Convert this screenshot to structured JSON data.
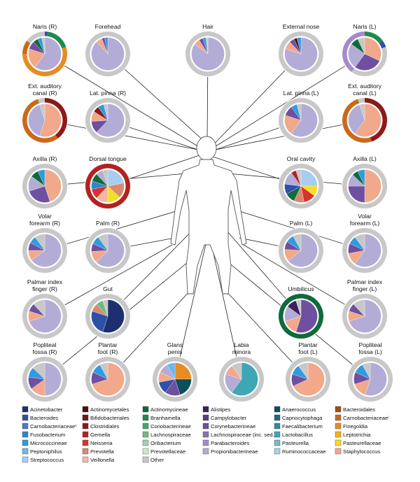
{
  "palette": {
    "Acinetobacter": "#1d2f6e",
    "Bacteroides": "#2f4fa8",
    "Carnobacteriaceae II": "#4c78c8",
    "Fusobacterium": "#2a89c9",
    "Micrococcineae": "#2f9be0",
    "Peptoniphilus": "#6fb6ea",
    "Streptococcus": "#a7cdf0",
    "Actinomycetales": "#4d1010",
    "Bifidobacteriales": "#701515",
    "Clostridiales": "#8c1a1a",
    "Gemella": "#b22222",
    "Neisseria": "#d93030",
    "Prevotella": "#d98a6e",
    "Veillonella": "#f0b9a4",
    "Actinomycineae": "#0f6a3c",
    "Branhamella": "#1f8a4f",
    "Coriobacterineae": "#3fa86a",
    "Lachnospiraceae": "#6dbb84",
    "Oribacterium": "#9ed2a8",
    "Prevotellaceae": "#cfe7cf",
    "Other": "#c8c8c8",
    "Alistipes": "#3e2060",
    "Campylobacter": "#5b3a86",
    "Corynebacterineae": "#6f4fa0",
    "Lachnospiraceae (inc. sed.)": "#8a6fb8",
    "Parabacteroides": "#a38ccb",
    "Propionibacterineae": "#b3acd6",
    "Anaerococcus": "#0b4e5c",
    "Capnocytophaga": "#176e7e",
    "Faecalibacterium": "#2a8c9c",
    "Lactobacillus": "#3fa6b6",
    "Pasteurella": "#6cc0ca",
    "Ruminococcaceae": "#a0d7dd",
    "Bacteroidales": "#a84a14",
    "Carnobacteriaceae I": "#c9691c",
    "Finegoldia": "#e88b23",
    "Leptotrichia": "#f2b41d",
    "Pasteurellaceae": "#f7dd25",
    "Staphylococcus": "#f2a88a",
    "ring_gray": "#c6c6c6"
  },
  "legend": [
    [
      "Acinetobacter",
      "Bacteroides",
      "Carnobacteriaceae II",
      "Fusobacterium",
      "Micrococcineae",
      "Peptoniphilus",
      "Streptococcus"
    ],
    [
      "Actinomycetales",
      "Bifidobacteriales",
      "Clostridiales",
      "Gemella",
      "Neisseria",
      "Prevotella",
      "Veillonella"
    ],
    [
      "Actinomycineae",
      "Branhamella",
      "Coriobacterineae",
      "Lachnospiraceae",
      "Oribacterium",
      "Prevotellaceae",
      "Other"
    ],
    [
      "Alistipes",
      "Campylobacter",
      "Corynebacterineae",
      "Lachnospiraceae (inc. sed.)",
      "Parabacteroides",
      "Propionibacterineae"
    ],
    [
      "Anaerococcus",
      "Capnocytophaga",
      "Faecalibacterium",
      "Lactobacillus",
      "Pasteurella",
      "Ruminococcaceae"
    ],
    [
      "Bacteroidales",
      "Carnobacteriaceae I",
      "Finegoldia",
      "Leptotrichia",
      "Pasteurellaceae",
      "Staphylococcus"
    ]
  ],
  "legend_display": {
    "Carnobacteriaceae II": "Carnobacteriaceaeⁱⁱ",
    "Carnobacteriaceae I": "Carnobacteriaceaeⁱ"
  },
  "sites": [
    {
      "id": "naris-r",
      "label": [
        "Naris (R)"
      ],
      "ring": [
        [
          "Bacteroides",
          2
        ],
        [
          "Branhamella",
          18
        ],
        [
          "Finegoldia",
          55
        ],
        [
          "Carnobacteriaceae I",
          10
        ],
        [
          "Other",
          15
        ]
      ],
      "pie": [
        [
          "Propionibacterineae",
          60
        ],
        [
          "Staphylococcus",
          20
        ],
        [
          "Corynebacterineae",
          8
        ],
        [
          "Actinomycineae",
          5
        ],
        [
          "Micrococcineae",
          4
        ],
        [
          "Other",
          3
        ]
      ]
    },
    {
      "id": "forehead",
      "label": [
        "Forehead"
      ],
      "ring": [
        [
          "Other",
          100
        ]
      ],
      "pie": [
        [
          "Propionibacterineae",
          88
        ],
        [
          "Staphylococcus",
          6
        ],
        [
          "Corynebacterineae",
          3
        ],
        [
          "Micrococcineae",
          3
        ]
      ]
    },
    {
      "id": "hair",
      "label": [
        "Hair"
      ],
      "ring": [
        [
          "Other",
          100
        ]
      ],
      "pie": [
        [
          "Propionibacterineae",
          85
        ],
        [
          "Staphylococcus",
          6
        ],
        [
          "Corynebacterineae",
          4
        ],
        [
          "Micrococcineae",
          3
        ],
        [
          "Other",
          2
        ]
      ]
    },
    {
      "id": "external-nose",
      "label": [
        "External nose"
      ],
      "ring": [
        [
          "Other",
          100
        ]
      ],
      "pie": [
        [
          "Propionibacterineae",
          80
        ],
        [
          "Staphylococcus",
          8
        ],
        [
          "Corynebacterineae",
          5
        ],
        [
          "Actinomycetales",
          3
        ],
        [
          "Micrococcineae",
          4
        ]
      ]
    },
    {
      "id": "naris-l",
      "label": [
        "Naris (L)"
      ],
      "ring": [
        [
          "Branhamella",
          15
        ],
        [
          "Bacteroides",
          5
        ],
        [
          "Other",
          40
        ],
        [
          "Parabacteroides",
          40
        ]
      ],
      "pie": [
        [
          "Staphylococcus",
          32
        ],
        [
          "Corynebacterineae",
          28
        ],
        [
          "Propionibacterineae",
          25
        ],
        [
          "Actinomycineae",
          8
        ],
        [
          "Other",
          7
        ]
      ]
    },
    {
      "id": "ext-auditory-r",
      "label": [
        "Ext. auditory",
        "canal (R)"
      ],
      "ring": [
        [
          "Clostridiales",
          40
        ],
        [
          "Carnobacteriaceae I",
          55
        ],
        [
          "Other",
          5
        ]
      ],
      "pie": [
        [
          "Staphylococcus",
          55
        ],
        [
          "Propionibacterineae",
          40
        ],
        [
          "Other",
          5
        ]
      ]
    },
    {
      "id": "lat-pinna-r",
      "label": [
        "Lat. pinna (R)"
      ],
      "ring": [
        [
          "Other",
          100
        ]
      ],
      "pie": [
        [
          "Propionibacterineae",
          62
        ],
        [
          "Corynebacterineae",
          12
        ],
        [
          "Staphylococcus",
          10
        ],
        [
          "Clostridiales",
          6
        ],
        [
          "Micrococcineae",
          6
        ],
        [
          "Other",
          4
        ]
      ]
    },
    {
      "id": "lat-pinna-l",
      "label": [
        "Lat. pinna (L)"
      ],
      "ring": [
        [
          "Other",
          100
        ]
      ],
      "pie": [
        [
          "Propionibacterineae",
          60
        ],
        [
          "Staphylococcus",
          20
        ],
        [
          "Corynebacterineae",
          10
        ],
        [
          "Micrococcineae",
          6
        ],
        [
          "Other",
          4
        ]
      ]
    },
    {
      "id": "ext-auditory-l",
      "label": [
        "Ext. auditory",
        "canal (L)"
      ],
      "ring": [
        [
          "Clostridiales",
          45
        ],
        [
          "Carnobacteriaceae I",
          50
        ],
        [
          "Other",
          5
        ]
      ],
      "pie": [
        [
          "Staphylococcus",
          60
        ],
        [
          "Propionibacterineae",
          35
        ],
        [
          "Other",
          5
        ]
      ]
    },
    {
      "id": "axilla-r",
      "label": [
        "Axilla (R)"
      ],
      "ring": [
        [
          "Other",
          100
        ]
      ],
      "pie": [
        [
          "Staphylococcus",
          45
        ],
        [
          "Corynebacterineae",
          25
        ],
        [
          "Propionibacterineae",
          15
        ],
        [
          "Actinomycineae",
          8
        ],
        [
          "Micrococcineae",
          7
        ]
      ]
    },
    {
      "id": "dorsal-tongue",
      "label": [
        "Dorsal tongue"
      ],
      "ring": [
        [
          "Gemella",
          100
        ]
      ],
      "pie": [
        [
          "Streptococcus",
          22
        ],
        [
          "Prevotella",
          15
        ],
        [
          "Pasteurellaceae",
          13
        ],
        [
          "Veillonella",
          12
        ],
        [
          "Neisseria",
          10
        ],
        [
          "Fusobacterium",
          8
        ],
        [
          "Actinomycineae",
          8
        ],
        [
          "Propionibacterineae",
          7
        ],
        [
          "Other",
          5
        ]
      ]
    },
    {
      "id": "oral-cavity",
      "label": [
        "Oral cavity"
      ],
      "ring": [
        [
          "Other",
          100
        ]
      ],
      "pie": [
        [
          "Streptococcus",
          25
        ],
        [
          "Pasteurellaceae",
          10
        ],
        [
          "Neisseria",
          12
        ],
        [
          "Prevotella",
          10
        ],
        [
          "Actinomycineae",
          10
        ],
        [
          "Bacteroides",
          10
        ],
        [
          "Propionibacterineae",
          13
        ],
        [
          "Gemella",
          5
        ],
        [
          "Other",
          5
        ]
      ]
    },
    {
      "id": "axilla-l",
      "label": [
        "Axilla (L)"
      ],
      "ring": [
        [
          "Other",
          100
        ]
      ],
      "pie": [
        [
          "Staphylococcus",
          50
        ],
        [
          "Corynebacterineae",
          25
        ],
        [
          "Propionibacterineae",
          12
        ],
        [
          "Actinomycineae",
          6
        ],
        [
          "Micrococcineae",
          7
        ]
      ]
    },
    {
      "id": "volar-forearm-r",
      "label": [
        "Volar",
        "forearm (R)"
      ],
      "ring": [
        [
          "Other",
          100
        ]
      ],
      "pie": [
        [
          "Propionibacterineae",
          65
        ],
        [
          "Staphylococcus",
          10
        ],
        [
          "Corynebacterineae",
          8
        ],
        [
          "Micrococcineae",
          7
        ],
        [
          "Other",
          10
        ]
      ]
    },
    {
      "id": "palm-r",
      "label": [
        "Palm (R)"
      ],
      "ring": [
        [
          "Other",
          100
        ]
      ],
      "pie": [
        [
          "Propionibacterineae",
          62
        ],
        [
          "Staphylococcus",
          12
        ],
        [
          "Corynebacterineae",
          8
        ],
        [
          "Micrococcineae",
          8
        ],
        [
          "Other",
          10
        ]
      ]
    },
    {
      "id": "palm-l",
      "label": [
        "Palm (L)"
      ],
      "ring": [
        [
          "Other",
          100
        ]
      ],
      "pie": [
        [
          "Propionibacterineae",
          64
        ],
        [
          "Staphylococcus",
          12
        ],
        [
          "Corynebacterineae",
          8
        ],
        [
          "Micrococcineae",
          8
        ],
        [
          "Other",
          8
        ]
      ]
    },
    {
      "id": "volar-forearm-l",
      "label": [
        "Volar",
        "forearm (L)"
      ],
      "ring": [
        [
          "Other",
          100
        ]
      ],
      "pie": [
        [
          "Propionibacterineae",
          60
        ],
        [
          "Staphylococcus",
          12
        ],
        [
          "Corynebacterineae",
          10
        ],
        [
          "Micrococcineae",
          8
        ],
        [
          "Other",
          10
        ]
      ]
    },
    {
      "id": "palmar-index-r",
      "label": [
        "Palmar index",
        "finger (R)"
      ],
      "ring": [
        [
          "Other",
          100
        ]
      ],
      "pie": [
        [
          "Propionibacterineae",
          70
        ],
        [
          "Staphylococcus",
          10
        ],
        [
          "Corynebacterineae",
          8
        ],
        [
          "Other",
          12
        ]
      ]
    },
    {
      "id": "gut",
      "label": [
        "Gut"
      ],
      "ring": [
        [
          "Other",
          100
        ]
      ],
      "pie": [
        [
          "Acinetobacter",
          55
        ],
        [
          "Bacteroides",
          25
        ],
        [
          "Prevotella",
          8
        ],
        [
          "Lachnospiraceae",
          7
        ],
        [
          "Other",
          5
        ]
      ]
    },
    {
      "id": "umbilicus",
      "label": [
        "Umbilicus"
      ],
      "ring": [
        [
          "Actinomycineae",
          100
        ]
      ],
      "pie": [
        [
          "Corynebacterineae",
          55
        ],
        [
          "Staphylococcus",
          15
        ],
        [
          "Propionibacterineae",
          15
        ],
        [
          "Alistipes",
          10
        ],
        [
          "Other",
          5
        ]
      ]
    },
    {
      "id": "palmar-index-l",
      "label": [
        "Palmar index",
        "finger (L)"
      ],
      "ring": [
        [
          "Other",
          100
        ]
      ],
      "pie": [
        [
          "Propionibacterineae",
          70
        ],
        [
          "Staphylococcus",
          10
        ],
        [
          "Corynebacterineae",
          8
        ],
        [
          "Other",
          12
        ]
      ]
    },
    {
      "id": "popliteal-r",
      "label": [
        "Popliteal",
        "fossa (R)"
      ],
      "ring": [
        [
          "Other",
          100
        ]
      ],
      "pie": [
        [
          "Propionibacterineae",
          50
        ],
        [
          "Staphylococcus",
          15
        ],
        [
          "Corynebacterineae",
          12
        ],
        [
          "Micrococcineae",
          10
        ],
        [
          "Other",
          13
        ]
      ]
    },
    {
      "id": "plantar-foot-r",
      "label": [
        "Plantar",
        "foot (R)"
      ],
      "ring": [
        [
          "Other",
          100
        ]
      ],
      "pie": [
        [
          "Staphylococcus",
          70
        ],
        [
          "Corynebacterineae",
          12
        ],
        [
          "Micrococcineae",
          10
        ],
        [
          "Other",
          8
        ]
      ]
    },
    {
      "id": "glans-penis",
      "label": [
        "Glans",
        "penis"
      ],
      "ring": [
        [
          "Other",
          100
        ]
      ],
      "pie": [
        [
          "Finegoldia",
          25
        ],
        [
          "Anaerococcus",
          20
        ],
        [
          "Corynebacterineae",
          15
        ],
        [
          "Bacteroides",
          12
        ],
        [
          "Staphylococcus",
          10
        ],
        [
          "Propionibacterineae",
          10
        ],
        [
          "Peptoniphilus",
          8
        ]
      ]
    },
    {
      "id": "labia-minora",
      "label": [
        "Labia",
        "minora"
      ],
      "ring": [
        [
          "Other",
          100
        ]
      ],
      "pie": [
        [
          "Lactobacillus",
          60
        ],
        [
          "Propionibacterineae",
          20
        ],
        [
          "Staphylococcus",
          10
        ],
        [
          "Other",
          10
        ]
      ]
    },
    {
      "id": "plantar-foot-l",
      "label": [
        "Plantar",
        "foot (L)"
      ],
      "ring": [
        [
          "Other",
          100
        ]
      ],
      "pie": [
        [
          "Staphylococcus",
          68
        ],
        [
          "Corynebacterineae",
          12
        ],
        [
          "Micrococcineae",
          10
        ],
        [
          "Other",
          10
        ]
      ]
    },
    {
      "id": "popliteal-l",
      "label": [
        "Popliteal",
        "fossa (L)"
      ],
      "ring": [
        [
          "Other",
          100
        ]
      ],
      "pie": [
        [
          "Propionibacterineae",
          55
        ],
        [
          "Staphylococcus",
          15
        ],
        [
          "Corynebacterineae",
          12
        ],
        [
          "Micrococcineae",
          10
        ],
        [
          "Other",
          8
        ]
      ]
    }
  ]
}
